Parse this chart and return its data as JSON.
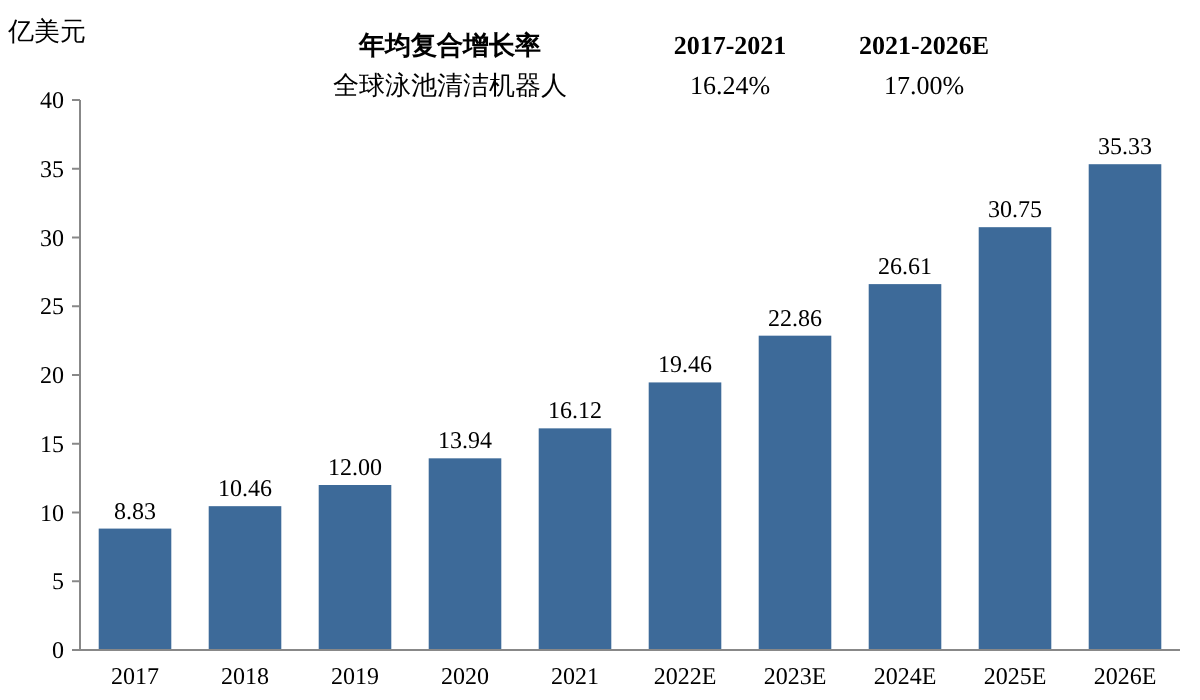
{
  "chart_data": {
    "type": "bar",
    "ylabel": "亿美元",
    "categories": [
      "2017",
      "2018",
      "2019",
      "2020",
      "2021",
      "2022E",
      "2023E",
      "2024E",
      "2025E",
      "2026E"
    ],
    "values": [
      8.83,
      10.46,
      12.0,
      13.94,
      16.12,
      19.46,
      22.86,
      26.61,
      30.75,
      35.33
    ],
    "value_labels": [
      "8.83",
      "10.46",
      "12.00",
      "13.94",
      "16.12",
      "19.46",
      "22.86",
      "26.61",
      "30.75",
      "35.33"
    ],
    "color": "#3d6a99",
    "ylim": [
      0,
      40
    ],
    "yticks": [
      0,
      5,
      10,
      15,
      20,
      25,
      30,
      35,
      40
    ],
    "grid": false,
    "annotations": [
      "年均复合增长率",
      "2017-2021",
      "2021-2026E",
      "全球泳池清洁机器人",
      "16.24%",
      "17.00%"
    ]
  }
}
